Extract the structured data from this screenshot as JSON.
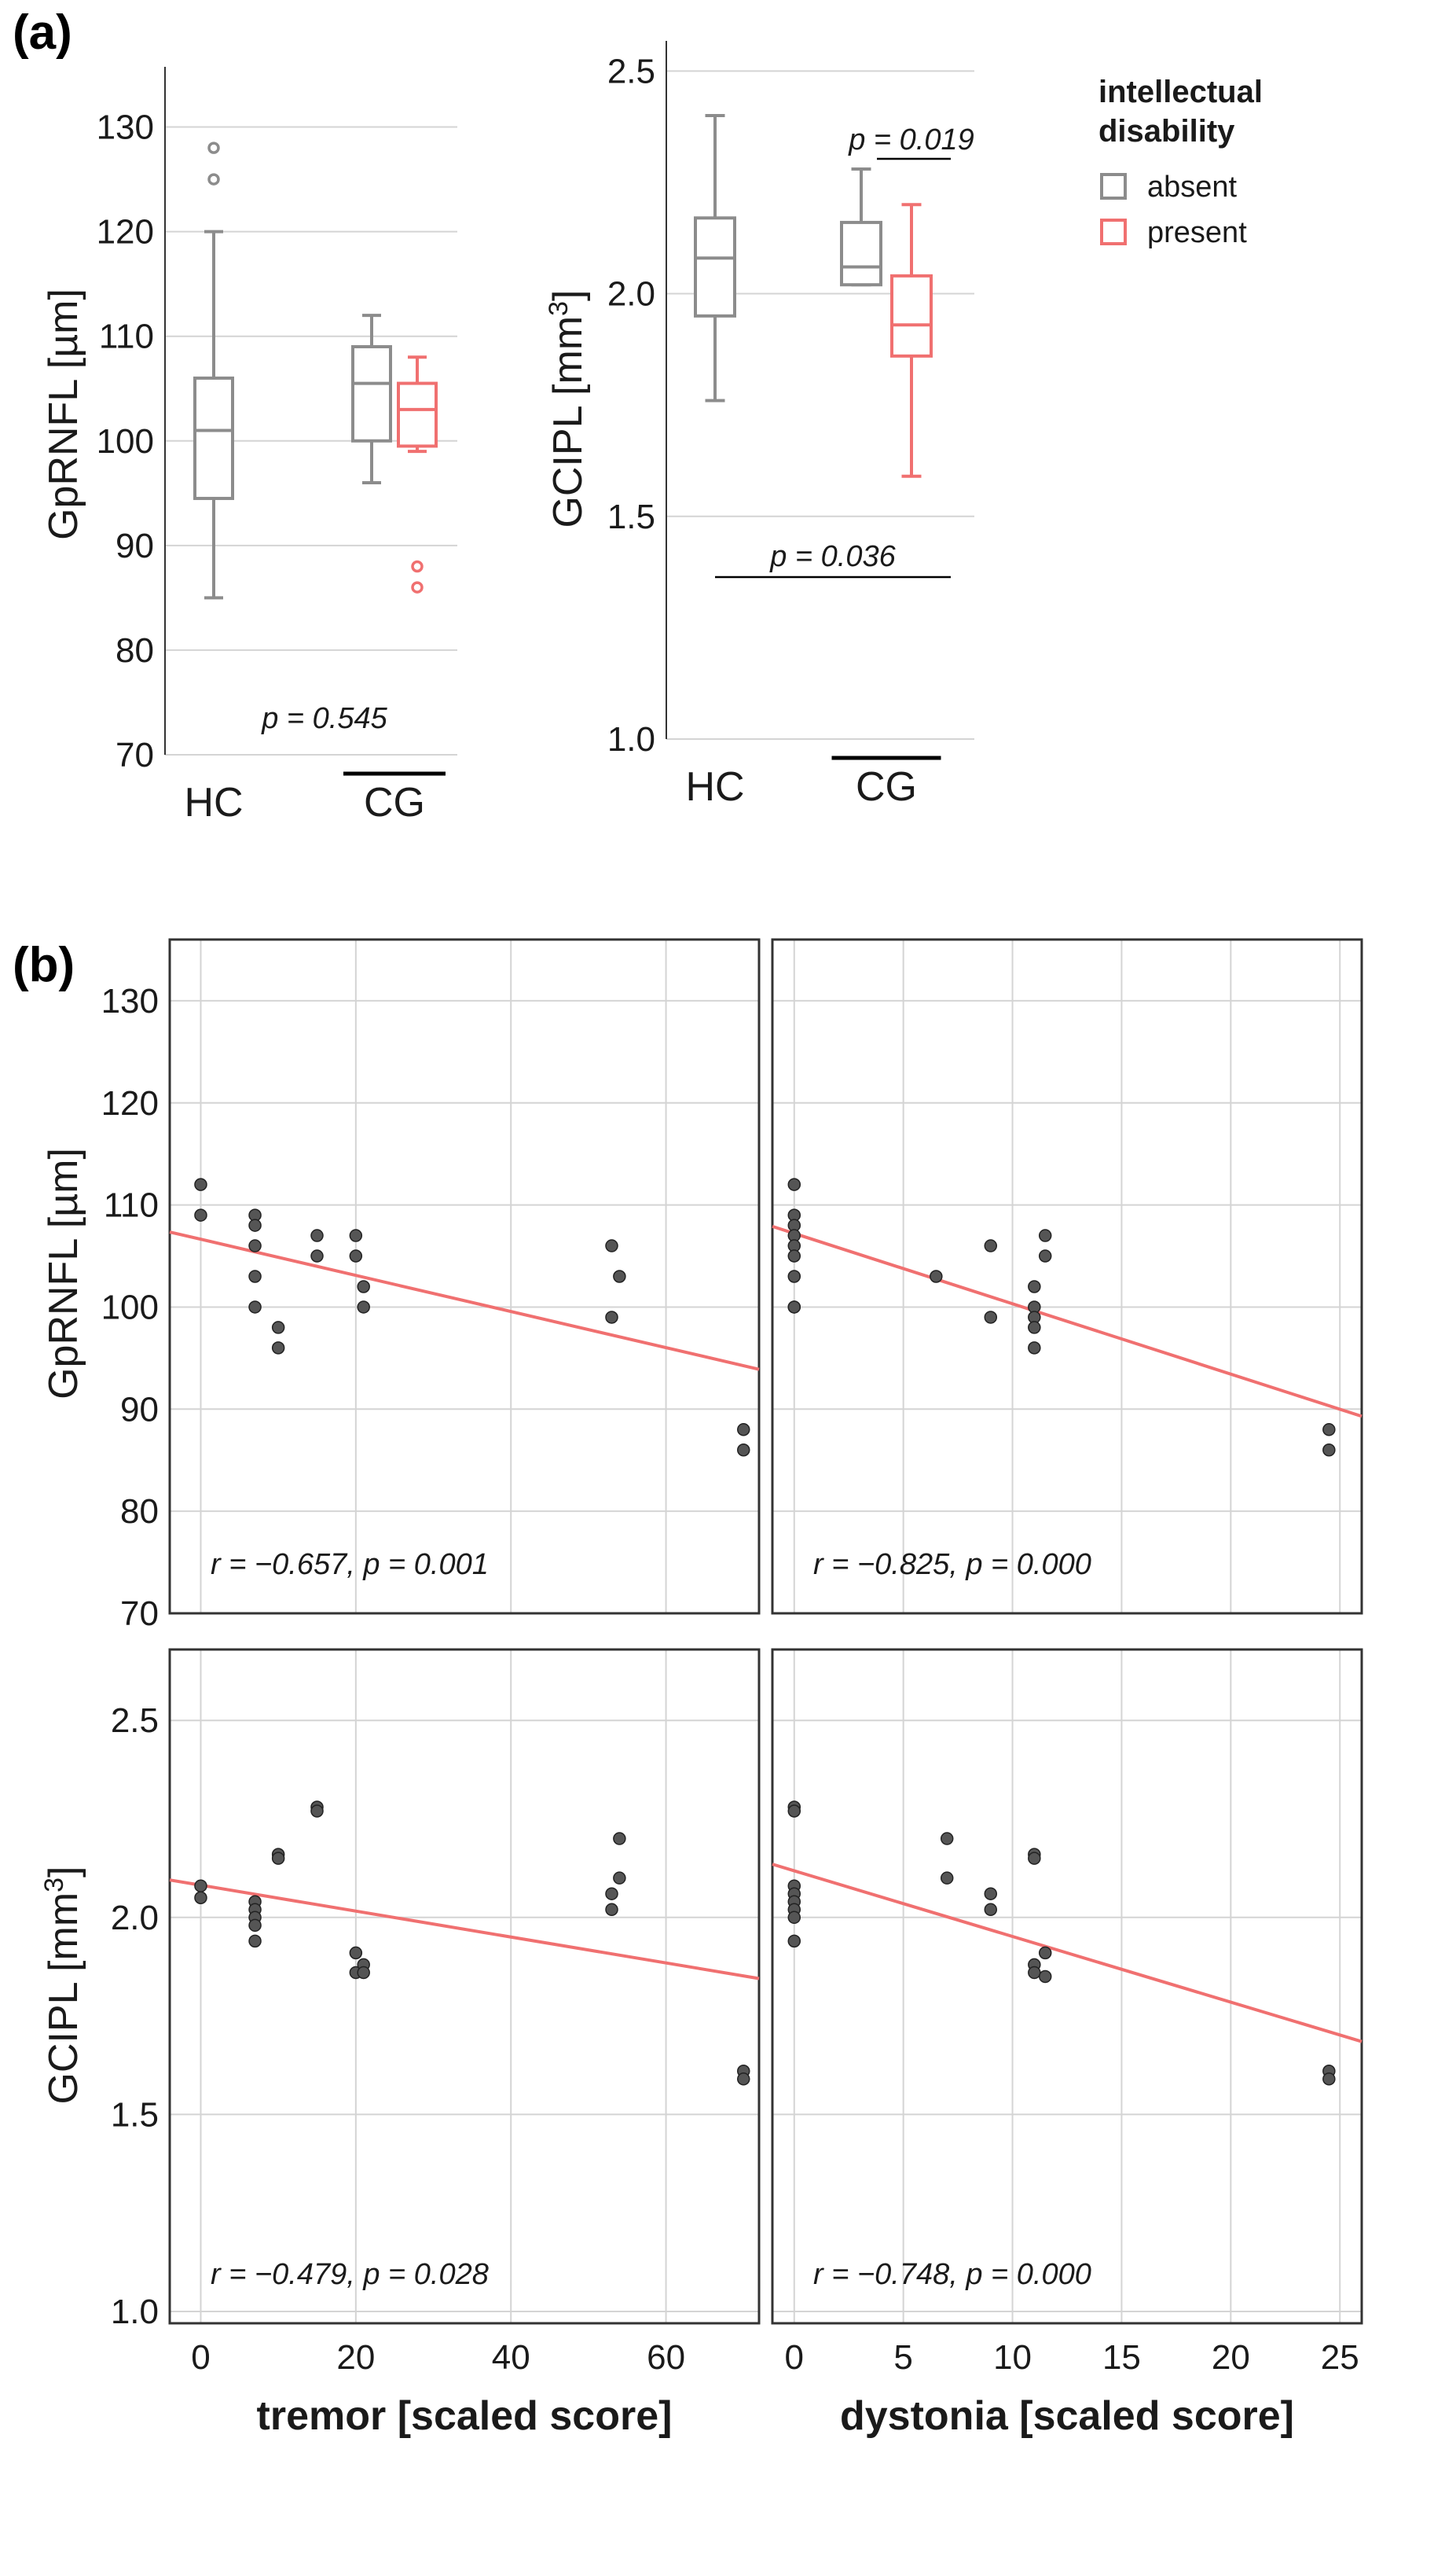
{
  "panel_labels": {
    "a": "(a)",
    "b": "(b)"
  },
  "colors": {
    "absent": "#8c8c8c",
    "present": "#f07070",
    "regression": "#f07070",
    "point": "#555555",
    "grid": "#d4d4d4"
  },
  "legend": {
    "title_line1": "intellectual",
    "title_line2": "disability",
    "absent": "absent",
    "present": "present"
  },
  "labels": {
    "gprnfl_y": "GpRNFL [µm]",
    "gcipl_y_base": "GCIPL [mm",
    "gcipl_y_sup": "3",
    "gcipl_y_end": "]",
    "tremor_x": "tremor [scaled score]",
    "dystonia_x": "dystonia [scaled score]",
    "group_hc": "HC",
    "group_cg": "CG"
  },
  "chart_data": [
    {
      "id": "a1",
      "type": "box",
      "ylabel": "GpRNFL [µm]",
      "ylim": [
        70,
        135
      ],
      "yticks": [
        70,
        80,
        90,
        100,
        110,
        120,
        130
      ],
      "boxes": [
        {
          "group": "HC",
          "id": "absent",
          "whisker_low": 85,
          "q1": 94.5,
          "median": 101,
          "q3": 106,
          "whisker_high": 120,
          "outliers": [
            125,
            128
          ]
        },
        {
          "group": "CG",
          "id": "absent",
          "whisker_low": 96,
          "q1": 100,
          "median": 105.5,
          "q3": 109,
          "whisker_high": 112,
          "outliers": []
        },
        {
          "group": "CG",
          "id": "present",
          "whisker_low": 99,
          "q1": 99.5,
          "median": 103,
          "q3": 105.5,
          "whisker_high": 108,
          "outliers": [
            86,
            88
          ]
        }
      ],
      "annotations": [
        {
          "text": "p = 0.545"
        }
      ]
    },
    {
      "id": "a2",
      "type": "box",
      "ylabel": "GCIPL [mm3]",
      "ylim": [
        1.0,
        2.55
      ],
      "yticks": [
        "1.0",
        "1.5",
        "2.0",
        "2.5"
      ],
      "boxes": [
        {
          "group": "HC",
          "id": "absent",
          "whisker_low": 1.76,
          "q1": 1.95,
          "median": 2.08,
          "q3": 2.17,
          "whisker_high": 2.4,
          "outliers": []
        },
        {
          "group": "CG",
          "id": "absent",
          "whisker_low": 2.02,
          "q1": 2.02,
          "median": 2.06,
          "q3": 2.16,
          "whisker_high": 2.28,
          "outliers": []
        },
        {
          "group": "CG",
          "id": "present",
          "whisker_low": 1.59,
          "q1": 1.86,
          "median": 1.93,
          "q3": 2.04,
          "whisker_high": 2.2,
          "outliers": []
        }
      ],
      "annotations": [
        {
          "text": "p = 0.019"
        },
        {
          "text": "p = 0.036"
        }
      ]
    },
    {
      "id": "b1",
      "type": "scatter",
      "xlabel": "",
      "ylabel": "GpRNFL [µm]",
      "xlim": [
        -4,
        72
      ],
      "ylim": [
        70,
        136
      ],
      "xticks": [
        0,
        20,
        40,
        60
      ],
      "yticks": [
        70,
        80,
        90,
        100,
        110,
        120,
        130
      ],
      "x": [
        0,
        0,
        7,
        7,
        7,
        7,
        7,
        10,
        10,
        15,
        15,
        20,
        20,
        21,
        21,
        53,
        53,
        54,
        70,
        70
      ],
      "y": [
        112,
        109,
        109,
        108,
        106,
        103,
        100,
        98,
        96,
        107,
        105,
        107,
        105,
        102,
        100,
        106,
        99,
        103,
        88,
        86
      ],
      "fit": {
        "x": [
          -4,
          72
        ],
        "y": [
          107.35,
          93.9
        ]
      },
      "annotation": "r = −0.657, p = 0.001"
    },
    {
      "id": "b2",
      "type": "scatter",
      "xlabel": "",
      "ylabel": "",
      "xlim": [
        -1,
        26
      ],
      "ylim": [
        70,
        136
      ],
      "xticks": [
        0,
        5,
        10,
        15,
        20,
        25
      ],
      "yticks": [
        70,
        80,
        90,
        100,
        110,
        120,
        130
      ],
      "x": [
        0,
        0,
        0,
        0,
        0,
        0,
        0,
        0,
        0,
        6.5,
        9,
        9,
        11,
        11,
        11,
        11,
        11,
        11.5,
        11.5,
        24.5,
        24.5
      ],
      "y": [
        112,
        109,
        108,
        107,
        106,
        105,
        103,
        100,
        100,
        103,
        106,
        99,
        102,
        100,
        99,
        98,
        96,
        107,
        105,
        88,
        86
      ],
      "fit": {
        "x": [
          -1,
          26
        ],
        "y": [
          107.9,
          89.3
        ]
      },
      "annotation": "r = −0.825, p = 0.000"
    },
    {
      "id": "b3",
      "type": "scatter",
      "xlabel": "tremor [scaled score]",
      "ylabel": "GCIPL [mm3]",
      "xlim": [
        -4,
        72
      ],
      "ylim": [
        0.97,
        2.68
      ],
      "xticks": [
        0,
        20,
        40,
        60
      ],
      "yticks": [
        "1.0",
        "1.5",
        "2.0",
        "2.5"
      ],
      "x": [
        0,
        0,
        7,
        7,
        7,
        7,
        7,
        10,
        10,
        15,
        15,
        20,
        20,
        21,
        21,
        53,
        53,
        54,
        54,
        70,
        70
      ],
      "y": [
        2.08,
        2.05,
        2.04,
        2.02,
        2.0,
        1.98,
        1.94,
        2.16,
        2.15,
        2.28,
        2.27,
        1.91,
        1.86,
        1.88,
        1.86,
        2.06,
        2.02,
        2.2,
        2.1,
        1.61,
        1.59
      ],
      "fit": {
        "x": [
          -4,
          72
        ],
        "y": [
          2.095,
          1.845
        ]
      },
      "annotation": "r = −0.479, p = 0.028"
    },
    {
      "id": "b4",
      "type": "scatter",
      "xlabel": "dystonia [scaled score]",
      "ylabel": "",
      "xlim": [
        -1,
        26
      ],
      "ylim": [
        0.97,
        2.68
      ],
      "xticks": [
        0,
        5,
        10,
        15,
        20,
        25
      ],
      "yticks": [
        "1.0",
        "1.5",
        "2.0",
        "2.5"
      ],
      "x": [
        0,
        0,
        0,
        0,
        0,
        0,
        0,
        0,
        7,
        7,
        9,
        9,
        11,
        11,
        11,
        11,
        11.5,
        11.5,
        24.5,
        24.5
      ],
      "y": [
        2.28,
        2.27,
        2.08,
        2.06,
        2.04,
        2.02,
        2.0,
        1.94,
        2.2,
        2.1,
        2.06,
        2.02,
        2.16,
        2.15,
        1.88,
        1.86,
        1.91,
        1.85,
        1.61,
        1.59
      ],
      "fit": {
        "x": [
          -1,
          26
        ],
        "y": [
          2.135,
          1.685
        ]
      },
      "annotation": "r = −0.748, p = 0.000"
    }
  ]
}
